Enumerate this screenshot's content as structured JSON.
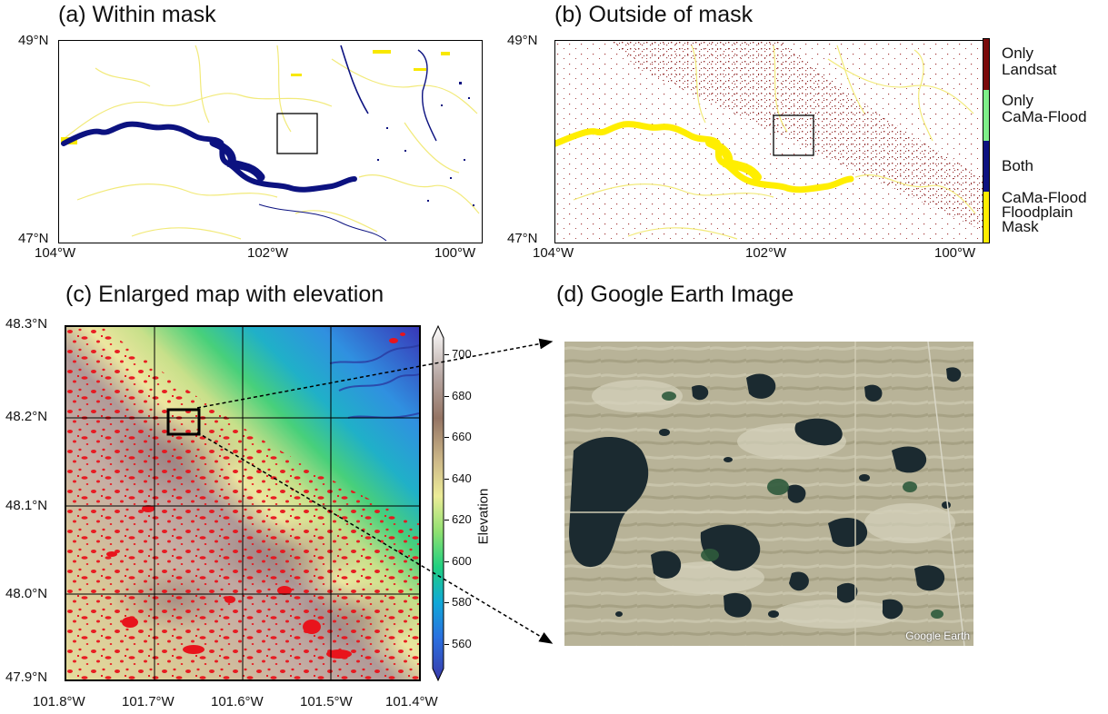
{
  "panels": {
    "a": {
      "title": "(a) Within mask",
      "lat_labels": [
        "49°N",
        "47°N"
      ],
      "lon_labels": [
        "104°W",
        "102°W",
        "100°W"
      ]
    },
    "b": {
      "title": "(b) Outside of mask",
      "lat_labels": [
        "49°N",
        "47°N"
      ],
      "lon_labels": [
        "104°W",
        "102°W",
        "100°W"
      ]
    },
    "c": {
      "title": "(c) Enlarged map with elevation",
      "lat_labels": [
        "48.3°N",
        "48.2°N",
        "48.1°N",
        "48.0°N",
        "47.9°N"
      ],
      "lon_labels": [
        "101.8°W",
        "101.7°W",
        "101.6°W",
        "101.5°W",
        "101.4°W"
      ]
    },
    "d": {
      "title": "(d) Google Earth Image",
      "watermark": "Google Earth"
    }
  },
  "category_legend": {
    "items": [
      {
        "label_lines": [
          "Only",
          "Landsat"
        ],
        "color": "#7a0a0a"
      },
      {
        "label_lines": [
          "Only",
          "CaMa-Flood"
        ],
        "color": "#7ff08a"
      },
      {
        "label_lines": [
          "Both"
        ],
        "color": "#0c1280"
      },
      {
        "label_lines": [
          "CaMa-Flood",
          "Floodplain",
          "Mask"
        ],
        "color": "#ffee00"
      }
    ]
  },
  "elevation_colorbar": {
    "label": "Elevation",
    "ticks": [
      "700",
      "680",
      "660",
      "640",
      "620",
      "600",
      "580",
      "560"
    ],
    "tick_values": [
      700,
      680,
      660,
      640,
      620,
      600,
      580,
      560
    ],
    "range": [
      548,
      708
    ],
    "colormap": "terrain",
    "extend": "both"
  },
  "colors": {
    "water_detected": "#e8141c",
    "inset_box": "#000000"
  }
}
